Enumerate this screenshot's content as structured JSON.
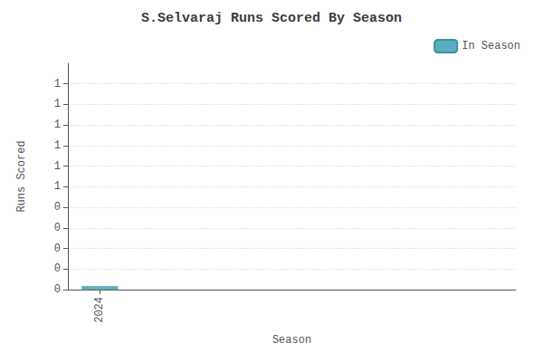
{
  "chart_data": {
    "type": "bar",
    "title": "S.Selvaraj Runs Scored By Season",
    "xlabel": "Season",
    "ylabel": "Runs Scored",
    "x": [
      2024
    ],
    "series": [
      {
        "name": "In Season",
        "color": "#5baebf",
        "values": [
          0.02
        ]
      }
    ],
    "xlim": [
      2023.5,
      2030.5
    ],
    "xticks": [
      2024
    ],
    "ylim": [
      0,
      1.32
    ],
    "yticks": [
      {
        "value": 0.0,
        "label": "0"
      },
      {
        "value": 0.12,
        "label": "0"
      },
      {
        "value": 0.24,
        "label": "0"
      },
      {
        "value": 0.36,
        "label": "0"
      },
      {
        "value": 0.48,
        "label": "0"
      },
      {
        "value": 0.6,
        "label": "1"
      },
      {
        "value": 0.72,
        "label": "1"
      },
      {
        "value": 0.84,
        "label": "1"
      },
      {
        "value": 0.96,
        "label": "1"
      },
      {
        "value": 1.08,
        "label": "1"
      },
      {
        "value": 1.2,
        "label": "1"
      }
    ],
    "grid": true,
    "legend": "upper right"
  }
}
